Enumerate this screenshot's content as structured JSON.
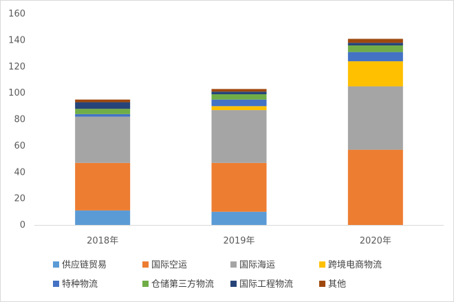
{
  "chart_data": {
    "type": "bar",
    "stacked": true,
    "title": "",
    "xlabel": "",
    "ylabel": "",
    "ylim": [
      0,
      160
    ],
    "yticks": [
      0,
      20,
      40,
      60,
      80,
      100,
      120,
      140,
      160
    ],
    "grid": false,
    "legend_position": "bottom",
    "categories": [
      "2018年",
      "2019年",
      "2020年"
    ],
    "series": [
      {
        "name": "供应链贸易",
        "color": "#5b9bd5",
        "values": [
          11,
          10,
          0
        ]
      },
      {
        "name": "国际空运",
        "color": "#ed7d31",
        "values": [
          36,
          37,
          57
        ]
      },
      {
        "name": "国际海运",
        "color": "#a5a5a5",
        "values": [
          35,
          40,
          48
        ]
      },
      {
        "name": "跨境电商物流",
        "color": "#ffc000",
        "values": [
          0,
          3,
          19
        ]
      },
      {
        "name": "特种物流",
        "color": "#4472c4",
        "values": [
          2,
          5,
          7
        ]
      },
      {
        "name": "仓储第三方物流",
        "color": "#70ad47",
        "values": [
          4,
          4,
          5
        ]
      },
      {
        "name": "国际工程物流",
        "color": "#264478",
        "values": [
          5,
          2,
          2
        ]
      },
      {
        "name": "其他",
        "color": "#9e480e",
        "values": [
          2,
          2,
          3
        ]
      }
    ]
  }
}
